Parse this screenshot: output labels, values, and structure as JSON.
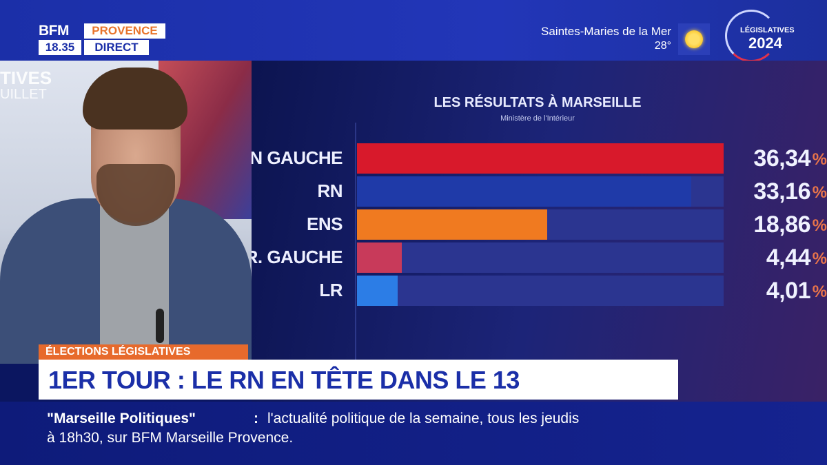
{
  "branding": {
    "channel": "BFM",
    "region": "PROVENCE",
    "time": "18.35",
    "live_label": "DIRECT"
  },
  "weather": {
    "city": "Saintes-Maries de la Mer",
    "temperature": "28°",
    "icon": "sun-icon"
  },
  "election_badge": {
    "title": "LÉGISLATIVES",
    "year": "2024"
  },
  "studio_background": {
    "word1": "TIVES",
    "word2": "UILLET"
  },
  "results": {
    "title": "LES RÉSULTATS À MARSEILLE",
    "source": "Ministère de l'Intérieur",
    "percent_symbol": "%"
  },
  "chart_data": {
    "type": "bar",
    "title": "LES RÉSULTATS À MARSEILLE",
    "subtitle": "Ministère de l'Intérieur",
    "categories": [
      "ON GAUCHE",
      "RN",
      "ENS",
      "TR. GAUCHE",
      "LR"
    ],
    "values": [
      36.34,
      33.16,
      18.86,
      4.44,
      4.01
    ],
    "value_labels": [
      "36,34",
      "33,16",
      "18,86",
      "4,44",
      "4,01"
    ],
    "colors": [
      "#d8192b",
      "#1f3aa8",
      "#f07a20",
      "#c83a5a",
      "#2c7de6"
    ],
    "ylim": [
      0,
      36.34
    ],
    "grid": false,
    "orientation": "horizontal"
  },
  "lower_third": {
    "tag": "ÉLECTIONS LÉGISLATIVES",
    "headline": "1ER TOUR : LE RN EN TÊTE DANS LE 13"
  },
  "ticker": {
    "show": "\"Marseille Politiques\"",
    "colon": ":",
    "line1": "l'actualité politique de la semaine, tous les jeudis",
    "line2": "à 18h30, sur BFM Marseille Provence."
  }
}
